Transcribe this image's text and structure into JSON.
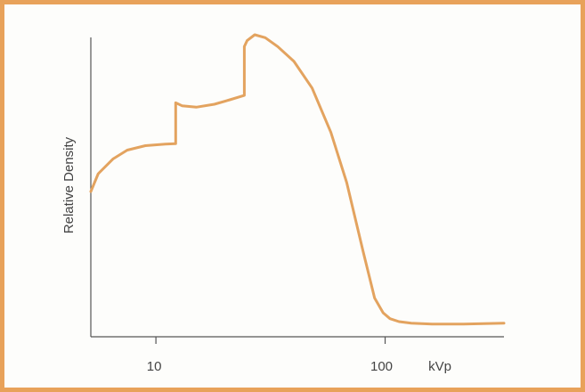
{
  "chart_data": {
    "type": "line",
    "title": "",
    "xlabel": "kVp",
    "ylabel": "Relative Density",
    "x_scale": "log",
    "x_ticks": [
      {
        "value": 10,
        "label": "10"
      },
      {
        "value": 100,
        "label": "100"
      }
    ],
    "xlim": [
      5.2,
      330
    ],
    "ylim": [
      0,
      1
    ],
    "grid": false,
    "series": [
      {
        "x": [
          5.2,
          5.6,
          6.5,
          7.5,
          9,
          11,
          12.2,
          12.2,
          13,
          15,
          18,
          21,
          24.3,
          24.3,
          25,
          27,
          30,
          34,
          40,
          48,
          58,
          68,
          80,
          90,
          98,
          105,
          115,
          130,
          160,
          220,
          330
        ],
        "y": [
          0.47,
          0.53,
          0.58,
          0.61,
          0.625,
          0.63,
          0.632,
          0.77,
          0.76,
          0.755,
          0.765,
          0.78,
          0.795,
          0.96,
          0.98,
          1.0,
          0.99,
          0.96,
          0.91,
          0.82,
          0.67,
          0.5,
          0.27,
          0.11,
          0.06,
          0.04,
          0.03,
          0.025,
          0.022,
          0.022,
          0.025
        ],
        "color": "#e3a35f"
      }
    ]
  },
  "labels": {
    "ylabel": "Relative Density",
    "xlabel": "kVp",
    "tick_10": "10",
    "tick_100": "100"
  }
}
